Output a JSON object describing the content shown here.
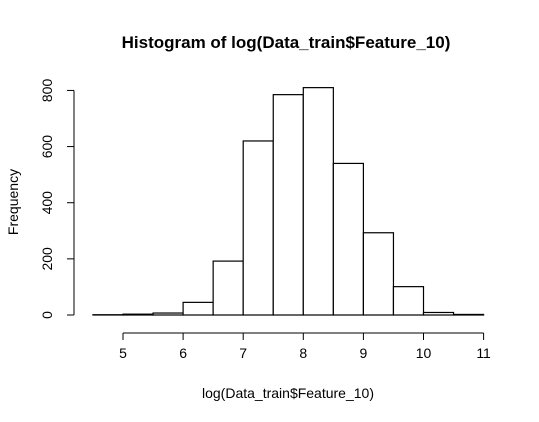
{
  "chart_data": {
    "type": "bar",
    "title": "Histogram of log(Data_train$Feature_10)",
    "xlabel": "log(Data_train$Feature_10)",
    "ylabel": "Frequency",
    "bins": [
      {
        "x0": 4.5,
        "x1": 5.0,
        "count": 1
      },
      {
        "x0": 5.0,
        "x1": 5.5,
        "count": 3
      },
      {
        "x0": 5.5,
        "x1": 6.0,
        "count": 7
      },
      {
        "x0": 6.0,
        "x1": 6.5,
        "count": 45
      },
      {
        "x0": 6.5,
        "x1": 7.0,
        "count": 192
      },
      {
        "x0": 7.0,
        "x1": 7.5,
        "count": 620
      },
      {
        "x0": 7.5,
        "x1": 8.0,
        "count": 785
      },
      {
        "x0": 8.0,
        "x1": 8.5,
        "count": 810
      },
      {
        "x0": 8.5,
        "x1": 9.0,
        "count": 540
      },
      {
        "x0": 9.0,
        "x1": 9.5,
        "count": 293
      },
      {
        "x0": 9.5,
        "x1": 10.0,
        "count": 101
      },
      {
        "x0": 10.0,
        "x1": 10.5,
        "count": 9
      },
      {
        "x0": 10.5,
        "x1": 11.0,
        "count": 2
      }
    ],
    "xlim": [
      4.5,
      11
    ],
    "ylim": [
      0,
      810
    ],
    "x_ticks": [
      "5",
      "6",
      "7",
      "8",
      "9",
      "10",
      "11"
    ],
    "y_ticks": [
      "0",
      "200",
      "400",
      "600",
      "800"
    ],
    "grid": false,
    "colors": {
      "bar_fill": "#ffffff",
      "bar_stroke": "#000000"
    }
  }
}
